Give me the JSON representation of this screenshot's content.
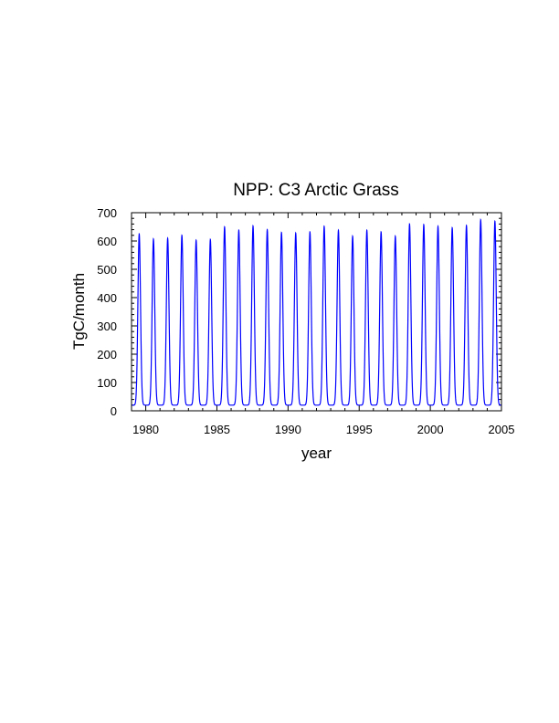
{
  "chart_data": {
    "type": "line",
    "title": "NPP: C3 Arctic Grass",
    "xlabel": "year",
    "ylabel": "TgC/month",
    "xlim": [
      1979,
      2005
    ],
    "ylim": [
      0,
      700
    ],
    "x_ticks": [
      1980,
      1985,
      1990,
      1995,
      2000,
      2005
    ],
    "y_ticks": [
      0,
      100,
      200,
      300,
      400,
      500,
      600,
      700
    ],
    "grid": false,
    "line_color": "#0000ff",
    "series": [
      {
        "baseline": 20,
        "x": [
          1979.54,
          1980.54,
          1981.54,
          1982.54,
          1983.54,
          1984.54,
          1985.54,
          1986.54,
          1987.54,
          1988.54,
          1989.54,
          1990.54,
          1991.54,
          1992.54,
          1993.54,
          1994.54,
          1995.54,
          1996.54,
          1997.54,
          1998.54,
          1999.54,
          2000.54,
          2001.54,
          2002.54,
          2003.54,
          2004.54
        ],
        "peaks": [
          625,
          607,
          610,
          620,
          603,
          605,
          650,
          638,
          653,
          640,
          630,
          628,
          632,
          652,
          638,
          617,
          638,
          632,
          617,
          660,
          658,
          652,
          647,
          655,
          675,
          670
        ]
      }
    ]
  }
}
